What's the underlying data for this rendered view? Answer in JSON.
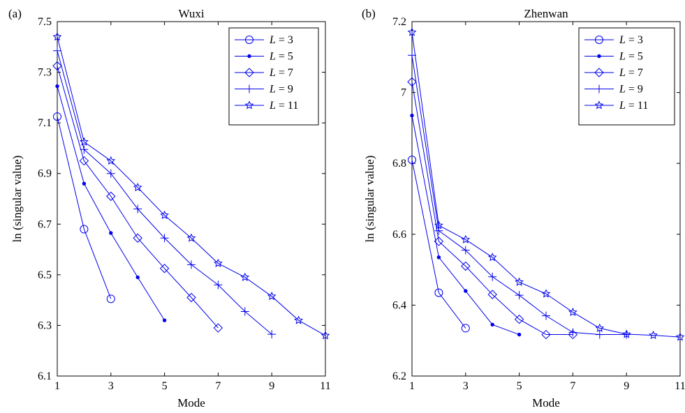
{
  "chart_data": [
    {
      "type": "line",
      "panel_label": "(a)",
      "title": "Wuxi",
      "xlabel": "Mode",
      "ylabel": "ln (singular value)",
      "xlim": [
        1,
        11
      ],
      "ylim": [
        6.1,
        7.5
      ],
      "xticks": [
        1,
        3,
        5,
        7,
        9,
        11
      ],
      "yticks": [
        6.1,
        6.3,
        6.5,
        6.7,
        6.9,
        7.1,
        7.3,
        7.5
      ],
      "ytick_labels": [
        "6.1",
        "6.3",
        "6.5",
        "6.7",
        "6.9",
        "7.1",
        "7.3",
        "7.5"
      ],
      "grid": false,
      "legend_position": "top-right",
      "color": "#0000ee",
      "series": [
        {
          "name": "L = 3",
          "var": "L",
          "val": "= 3",
          "marker": "circle",
          "x": [
            1,
            2,
            3
          ],
          "values": [
            7.125,
            6.68,
            6.405
          ]
        },
        {
          "name": "L = 5",
          "var": "L",
          "val": "= 5",
          "marker": "dot",
          "x": [
            1,
            2,
            3,
            4,
            5
          ],
          "values": [
            7.245,
            6.86,
            6.665,
            6.49,
            6.32
          ]
        },
        {
          "name": "L = 7",
          "var": "L",
          "val": "= 7",
          "marker": "diamond",
          "x": [
            1,
            2,
            3,
            4,
            5,
            6,
            7
          ],
          "values": [
            7.325,
            6.95,
            6.81,
            6.645,
            6.525,
            6.41,
            6.29
          ]
        },
        {
          "name": "L = 9",
          "var": "L",
          "val": "= 9",
          "marker": "plus",
          "x": [
            1,
            2,
            3,
            4,
            5,
            6,
            7,
            8,
            9
          ],
          "values": [
            7.385,
            6.995,
            6.9,
            6.76,
            6.645,
            6.54,
            6.46,
            6.355,
            6.265
          ]
        },
        {
          "name": "L = 11",
          "var": "L",
          "val": "= 11",
          "marker": "star",
          "x": [
            1,
            2,
            3,
            4,
            5,
            6,
            7,
            8,
            9,
            10,
            11
          ],
          "values": [
            7.44,
            7.025,
            6.95,
            6.845,
            6.735,
            6.645,
            6.545,
            6.49,
            6.415,
            6.32,
            6.26
          ]
        }
      ]
    },
    {
      "type": "line",
      "panel_label": "(b)",
      "title": "Zhenwan",
      "xlabel": "Mode",
      "ylabel": "ln (singular value)",
      "xlim": [
        1,
        11
      ],
      "ylim": [
        6.2,
        7.2
      ],
      "xticks": [
        1,
        3,
        5,
        7,
        9,
        11
      ],
      "yticks": [
        6.2,
        6.4,
        6.6,
        6.8,
        7.0,
        7.2
      ],
      "ytick_labels": [
        "6.2",
        "6.4",
        "6.6",
        "6.8",
        "7",
        "7.2"
      ],
      "grid": false,
      "legend_position": "top-right",
      "color": "#0000ee",
      "series": [
        {
          "name": "L = 3",
          "var": "L",
          "val": "= 3",
          "marker": "circle",
          "x": [
            1,
            2,
            3
          ],
          "values": [
            6.81,
            6.435,
            6.335
          ]
        },
        {
          "name": "L = 5",
          "var": "L",
          "val": "= 5",
          "marker": "dot",
          "x": [
            1,
            2,
            3,
            4,
            5
          ],
          "values": [
            6.935,
            6.535,
            6.44,
            6.345,
            6.317
          ]
        },
        {
          "name": "L = 7",
          "var": "L",
          "val": "= 7",
          "marker": "diamond",
          "x": [
            1,
            2,
            3,
            4,
            5,
            6,
            7
          ],
          "values": [
            7.03,
            6.58,
            6.51,
            6.43,
            6.36,
            6.317,
            6.317
          ]
        },
        {
          "name": "L = 9",
          "var": "L",
          "val": "= 9",
          "marker": "plus",
          "x": [
            1,
            2,
            3,
            4,
            5,
            6,
            7,
            8,
            9
          ],
          "values": [
            7.105,
            6.61,
            6.555,
            6.48,
            6.428,
            6.37,
            6.323,
            6.317,
            6.317
          ]
        },
        {
          "name": "L = 11",
          "var": "L",
          "val": "= 11",
          "marker": "star",
          "x": [
            1,
            2,
            3,
            4,
            5,
            6,
            7,
            8,
            9,
            10,
            11
          ],
          "values": [
            7.17,
            6.625,
            6.585,
            6.535,
            6.465,
            6.432,
            6.38,
            6.335,
            6.318,
            6.315,
            6.31
          ]
        }
      ]
    }
  ]
}
